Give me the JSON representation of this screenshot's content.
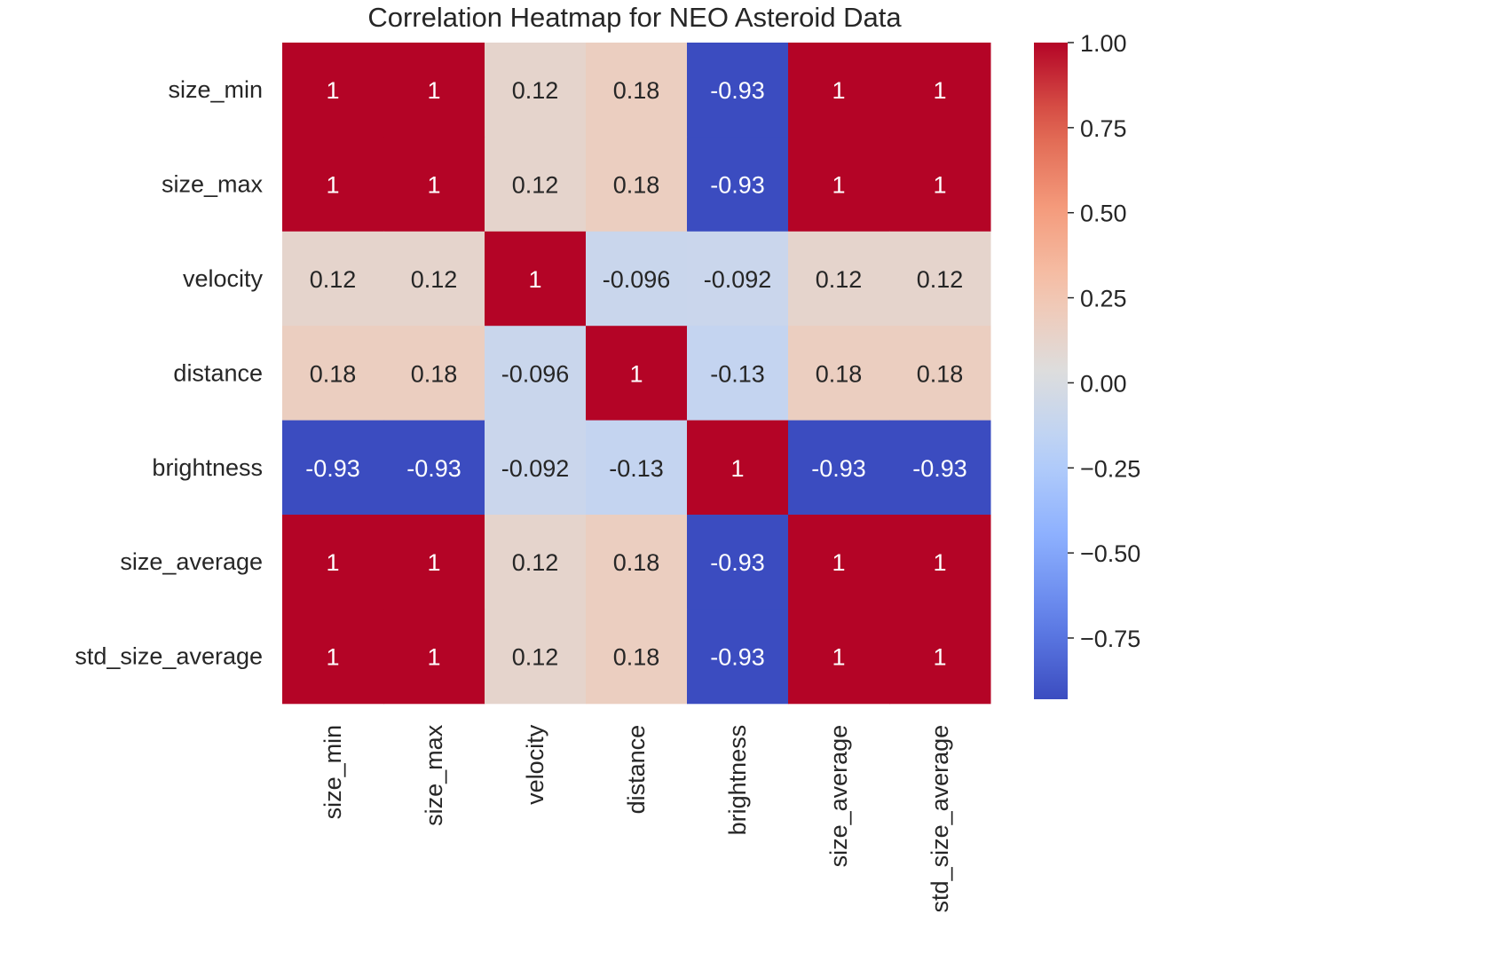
{
  "chart_data": {
    "type": "heatmap",
    "title": "Correlation Heatmap for NEO Asteroid Data",
    "xlabel": "",
    "ylabel": "",
    "x_categories": [
      "size_min",
      "size_max",
      "velocity",
      "distance",
      "brightness",
      "size_average",
      "std_size_average"
    ],
    "y_categories": [
      "size_min",
      "size_max",
      "velocity",
      "distance",
      "brightness",
      "size_average",
      "std_size_average"
    ],
    "values": [
      [
        1,
        1,
        0.12,
        0.18,
        -0.93,
        1,
        1
      ],
      [
        1,
        1,
        0.12,
        0.18,
        -0.93,
        1,
        1
      ],
      [
        0.12,
        0.12,
        1,
        -0.096,
        -0.092,
        0.12,
        0.12
      ],
      [
        0.18,
        0.18,
        -0.096,
        1,
        -0.13,
        0.18,
        0.18
      ],
      [
        -0.93,
        -0.93,
        -0.092,
        -0.13,
        1,
        -0.93,
        -0.93
      ],
      [
        1,
        1,
        0.12,
        0.18,
        -0.93,
        1,
        1
      ],
      [
        1,
        1,
        0.12,
        0.18,
        -0.93,
        1,
        1
      ]
    ],
    "annotations": [
      [
        "1",
        "1",
        "0.12",
        "0.18",
        "-0.93",
        "1",
        "1"
      ],
      [
        "1",
        "1",
        "0.12",
        "0.18",
        "-0.93",
        "1",
        "1"
      ],
      [
        "0.12",
        "0.12",
        "1",
        "-0.096",
        "-0.092",
        "0.12",
        "0.12"
      ],
      [
        "0.18",
        "0.18",
        "-0.096",
        "1",
        "-0.13",
        "0.18",
        "0.18"
      ],
      [
        "-0.93",
        "-0.93",
        "-0.092",
        "-0.13",
        "1",
        "-0.93",
        "-0.93"
      ],
      [
        "1",
        "1",
        "0.12",
        "0.18",
        "-0.93",
        "1",
        "1"
      ],
      [
        "1",
        "1",
        "0.12",
        "0.18",
        "-0.93",
        "1",
        "1"
      ]
    ],
    "colormap": "coolwarm",
    "colorbar": {
      "vmin": -0.93,
      "vmax": 1.0,
      "ticks": [
        1.0,
        0.75,
        0.5,
        0.25,
        0.0,
        -0.25,
        -0.5,
        -0.75
      ],
      "tick_labels": [
        "1.00",
        "0.75",
        "0.50",
        "0.25",
        "0.00",
        "−0.25",
        "−0.50",
        "−0.75"
      ],
      "placement": "right"
    },
    "grid": false
  }
}
